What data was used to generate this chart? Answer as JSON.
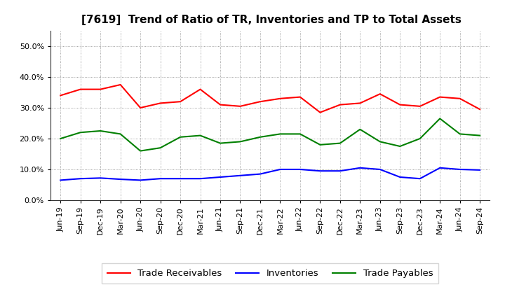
{
  "title": "[7619]  Trend of Ratio of TR, Inventories and TP to Total Assets",
  "x_labels": [
    "Jun-19",
    "Sep-19",
    "Dec-19",
    "Mar-20",
    "Jun-20",
    "Sep-20",
    "Dec-20",
    "Mar-21",
    "Jun-21",
    "Sep-21",
    "Dec-21",
    "Mar-22",
    "Jun-22",
    "Sep-22",
    "Dec-22",
    "Mar-23",
    "Jun-23",
    "Sep-23",
    "Dec-23",
    "Mar-24",
    "Jun-24",
    "Sep-24"
  ],
  "trade_receivables": [
    34.0,
    36.0,
    36.0,
    37.5,
    30.0,
    31.5,
    32.0,
    36.0,
    31.0,
    30.5,
    32.0,
    33.0,
    33.5,
    28.5,
    31.0,
    31.5,
    34.5,
    31.0,
    30.5,
    33.5,
    33.0,
    29.5
  ],
  "inventories": [
    6.5,
    7.0,
    7.2,
    6.8,
    6.5,
    7.0,
    7.0,
    7.0,
    7.5,
    8.0,
    8.5,
    10.0,
    10.0,
    9.5,
    9.5,
    10.5,
    10.0,
    7.5,
    7.0,
    10.5,
    10.0,
    9.8
  ],
  "trade_payables": [
    20.0,
    22.0,
    22.5,
    21.5,
    16.0,
    17.0,
    20.5,
    21.0,
    18.5,
    19.0,
    20.5,
    21.5,
    21.5,
    18.0,
    18.5,
    23.0,
    19.0,
    17.5,
    20.0,
    26.5,
    21.5,
    21.0
  ],
  "tr_color": "#FF0000",
  "inv_color": "#0000FF",
  "tp_color": "#008000",
  "ylim": [
    0,
    55
  ],
  "yticks": [
    0.0,
    10.0,
    20.0,
    30.0,
    40.0,
    50.0
  ],
  "ytick_labels": [
    "0.0%",
    "10.0%",
    "20.0%",
    "30.0%",
    "40.0%",
    "50.0%"
  ],
  "legend_labels": [
    "Trade Receivables",
    "Inventories",
    "Trade Payables"
  ],
  "background_color": "#FFFFFF",
  "plot_bg_color": "#FFFFFF",
  "grid_color": "#888888",
  "line_width": 1.5,
  "title_fontsize": 11,
  "tick_fontsize": 8,
  "legend_fontsize": 9.5
}
